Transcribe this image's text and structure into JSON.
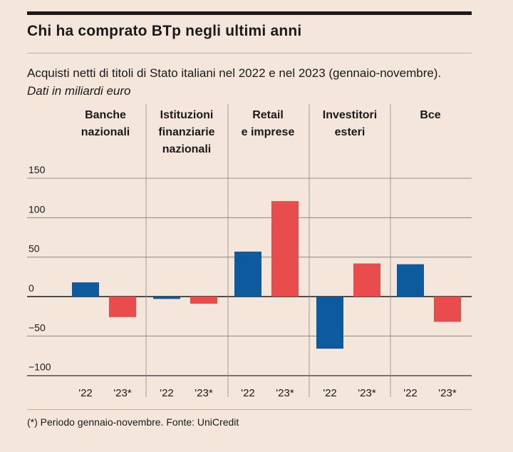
{
  "header": {
    "title": "Chi ha comprato BTp negli ultimi anni",
    "subtitle": "Acquisti netti di titoli di Stato italiani nel 2022 e nel 2023 (gennaio-novembre). ",
    "subtitle_italic": "Dati in miliardi euro"
  },
  "footnote": "(*) Periodo gennaio-novembre. Fonte: UniCredit",
  "colors": {
    "bar_2022": "#0d5a9e",
    "bar_2023": "#e84c4c",
    "background": "#f4e6da",
    "grid": "#7a7a7a"
  },
  "chart_data": {
    "type": "bar",
    "categories": [
      [
        "Banche",
        "nazionali"
      ],
      [
        "Istituzioni",
        "finanziarie",
        "nazionali"
      ],
      [
        "Retail",
        "e imprese"
      ],
      [
        "Investitori",
        "esteri"
      ],
      [
        "Bce"
      ]
    ],
    "series_labels": [
      "'22",
      "'23*"
    ],
    "values": [
      [
        18,
        -26
      ],
      [
        -3,
        -9
      ],
      [
        57,
        121
      ],
      [
        -66,
        42
      ],
      [
        41,
        -32
      ]
    ],
    "yticks": [
      150,
      100,
      50,
      0,
      -50,
      -100
    ],
    "ytick_labels": [
      "150",
      "100",
      "50",
      "0",
      "−50",
      "−100"
    ],
    "ylim": [
      -100,
      150
    ]
  }
}
